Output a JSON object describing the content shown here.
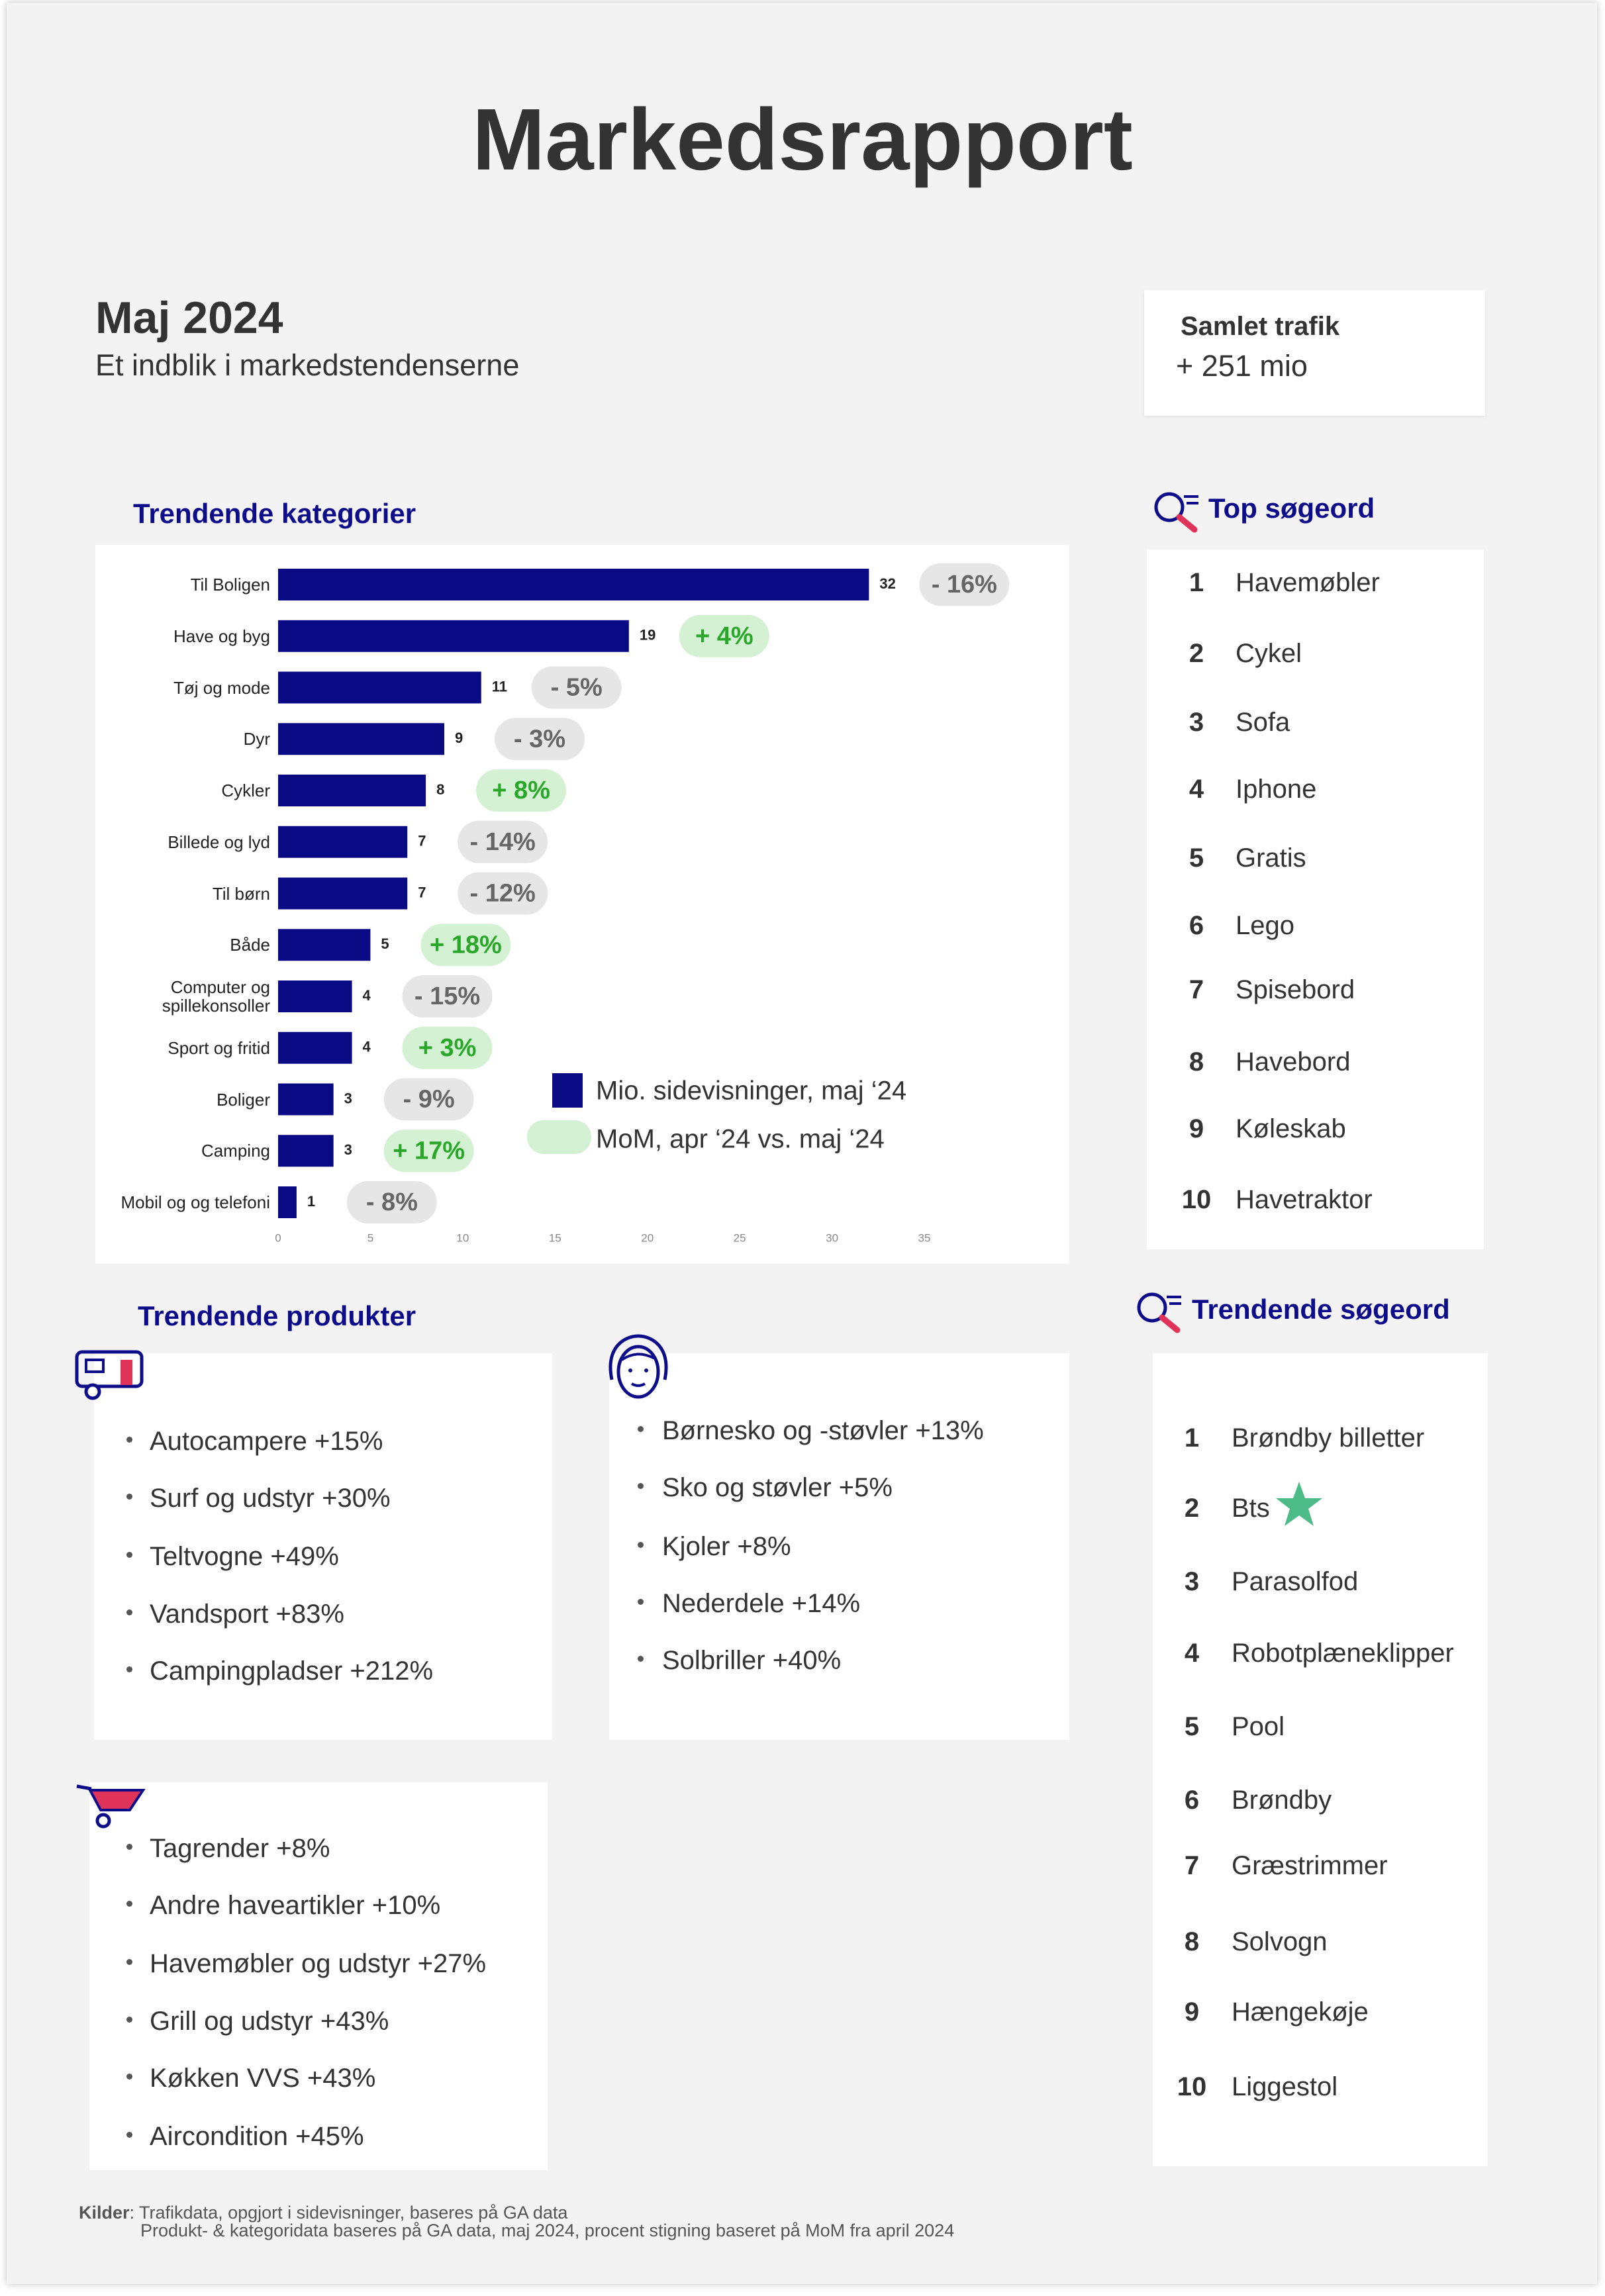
{
  "header": {
    "title": "Markedsrapport",
    "period": "Maj 2024",
    "subtitle": "Et indblik i markedstendenserne"
  },
  "traffic": {
    "label": "Samlet trafik",
    "value": "+ 251 mio"
  },
  "chart_data": {
    "type": "bar",
    "orientation": "horizontal",
    "title": "Trendende kategorier",
    "categories": [
      "Til Boligen",
      "Have og byg",
      "Tøj og mode",
      "Dyr",
      "Cykler",
      "Billede og lyd",
      "Til børn",
      "Både",
      "Computer og spillekonsoller",
      "Sport og fritid",
      "Boliger",
      "Camping",
      "Mobil og og telefoni"
    ],
    "series": [
      {
        "name": "Mio. sidevisninger, maj ‘24",
        "color": "#0a0a84",
        "values": [
          32,
          19,
          11,
          9,
          8,
          7,
          7,
          5,
          4,
          4,
          3,
          3,
          1
        ]
      },
      {
        "name": "MoM, apr ‘24 vs. maj ‘24",
        "color": "#d5f1d3",
        "negative_color": "#e6e6e6",
        "text_color": "#2aa62a",
        "negative_text_color": "#666666",
        "values": [
          -16,
          4,
          -5,
          -3,
          8,
          -14,
          -12,
          18,
          -15,
          3,
          -9,
          17,
          -8
        ],
        "value_labels": [
          "- 16%",
          "+ 4%",
          "- 5%",
          "- 3%",
          "+ 8%",
          "- 14%",
          "- 12%",
          "+ 18%",
          "- 15%",
          "+ 3%",
          "- 9%",
          "+ 17%",
          "- 8%"
        ]
      }
    ],
    "xlim": [
      0,
      35
    ],
    "xticks": [
      0,
      5,
      10,
      15,
      20,
      25,
      30,
      35
    ]
  },
  "top_searches": {
    "title": "Top søgeord",
    "items": [
      {
        "rank": 1,
        "term": "Havemøbler"
      },
      {
        "rank": 2,
        "term": "Cykel"
      },
      {
        "rank": 3,
        "term": "Sofa"
      },
      {
        "rank": 4,
        "term": "Iphone"
      },
      {
        "rank": 5,
        "term": "Gratis"
      },
      {
        "rank": 6,
        "term": "Lego"
      },
      {
        "rank": 7,
        "term": "Spisebord"
      },
      {
        "rank": 8,
        "term": "Havebord"
      },
      {
        "rank": 9,
        "term": "Køleskab"
      },
      {
        "rank": 10,
        "term": "Havetraktor"
      }
    ]
  },
  "trending_searches": {
    "title": "Trendende søgeord",
    "items": [
      {
        "rank": 1,
        "term": "Brøndby billetter"
      },
      {
        "rank": 2,
        "term": "Bts"
      },
      {
        "rank": 3,
        "term": "Parasolfod"
      },
      {
        "rank": 4,
        "term": "Robotplæneklipper"
      },
      {
        "rank": 5,
        "term": "Pool"
      },
      {
        "rank": 6,
        "term": "Brøndby"
      },
      {
        "rank": 7,
        "term": "Græstrimmer"
      },
      {
        "rank": 8,
        "term": "Solvogn"
      },
      {
        "rank": 9,
        "term": "Hængekøje"
      },
      {
        "rank": 10,
        "term": "Liggestol"
      }
    ]
  },
  "trending_products": {
    "title": "Trendende produkter",
    "groups": [
      [
        "Autocampere +15%",
        "Surf og udstyr +30%",
        "Teltvogne +49%",
        "Vandsport +83%",
        "Campingpladser +212%"
      ],
      [
        "Børnesko og -støvler +13%",
        "Sko og støvler +5%",
        "Kjoler +8%",
        "Nederdele +14%",
        "Solbriller +40%"
      ],
      [
        "Tagrender +8%",
        "Andre haveartikler +10%",
        "Havemøbler og udstyr +27%",
        "Grill og udstyr +43%",
        "Køkken VVS +43%",
        "Aircondition +45%"
      ]
    ]
  },
  "footer": {
    "label": "Kilder",
    "lines": [
      ": Trafikdata, opgjort i sidevisninger, baseres på GA data",
      "Produkt- & kategoridata baseres på GA data, maj 2024, procent stigning baseret på MoM fra april 2024"
    ]
  }
}
